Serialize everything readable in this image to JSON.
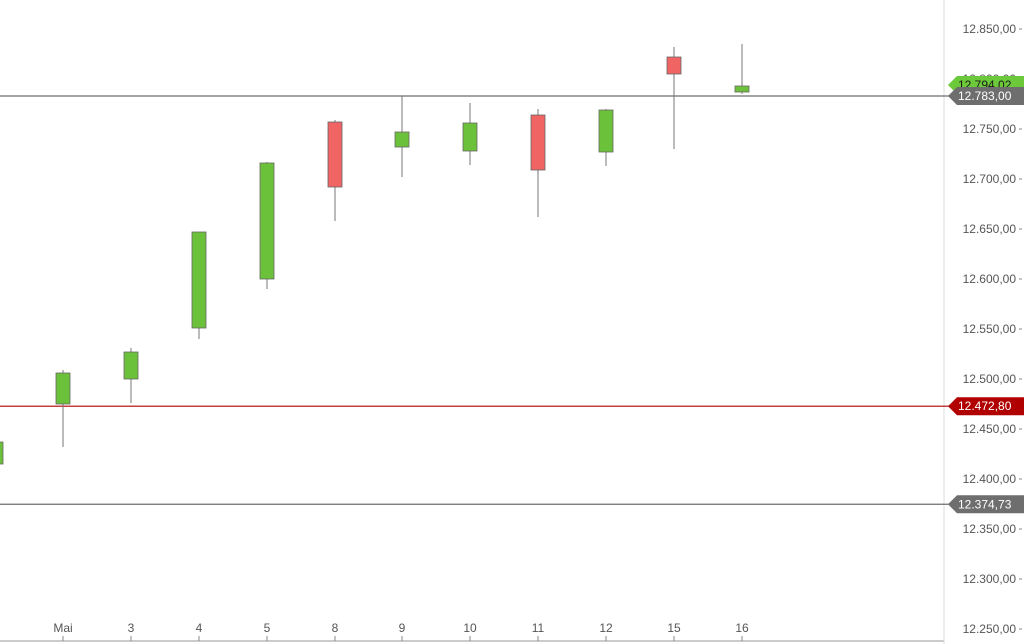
{
  "chart_data": {
    "type": "candlestick",
    "y_axis": {
      "ticks": [
        12250,
        12300,
        12350,
        12400,
        12450,
        12500,
        12550,
        12600,
        12650,
        12700,
        12750,
        12800,
        12850
      ],
      "tick_labels": [
        "12.250,00",
        "12.300,00",
        "12.350,00",
        "12.400,00",
        "12.450,00",
        "12.500,00",
        "12.550,00",
        "12.600,00",
        "12.650,00",
        "12.700,00",
        "12.750,00",
        "12.800,00",
        "12.850,00"
      ],
      "ylim": [
        12250,
        12875
      ],
      "position": "right"
    },
    "x_labels": [
      "3",
      "Mai",
      "3",
      "4",
      "5",
      "8",
      "9",
      "10",
      "11",
      "12",
      "15",
      "16"
    ],
    "candles": [
      {
        "x": "3",
        "open": 12415,
        "close": 12437,
        "high": 12437,
        "low": 12413,
        "dir": "up"
      },
      {
        "x": "Mai",
        "open": 12475,
        "close": 12506,
        "high": 12509,
        "low": 12432,
        "dir": "up"
      },
      {
        "x": "3",
        "open": 12500,
        "close": 12527,
        "high": 12531,
        "low": 12476,
        "dir": "up"
      },
      {
        "x": "4",
        "open": 12551,
        "close": 12647,
        "high": 12647,
        "low": 12540,
        "dir": "up"
      },
      {
        "x": "5",
        "open": 12600,
        "close": 12716,
        "high": 12717,
        "low": 12590,
        "dir": "up"
      },
      {
        "x": "8",
        "open": 12757,
        "close": 12692,
        "high": 12759,
        "low": 12658,
        "dir": "down"
      },
      {
        "x": "9",
        "open": 12732,
        "close": 12747,
        "high": 12783,
        "low": 12702,
        "dir": "up"
      },
      {
        "x": "10",
        "open": 12728,
        "close": 12756,
        "high": 12776,
        "low": 12714,
        "dir": "up"
      },
      {
        "x": "11",
        "open": 12764,
        "close": 12709,
        "high": 12770,
        "low": 12662,
        "dir": "down"
      },
      {
        "x": "12",
        "open": 12727,
        "close": 12769,
        "high": 12770,
        "low": 12713,
        "dir": "up"
      },
      {
        "x": "15",
        "open": 12822,
        "close": 12805,
        "high": 12832,
        "low": 12730,
        "dir": "down"
      },
      {
        "x": "16",
        "open": 12787,
        "close": 12793,
        "high": 12835,
        "low": 12785,
        "dir": "up"
      }
    ],
    "horizontal_lines": [
      {
        "value": 12783,
        "label": "12.783,00",
        "color": "#6e6e6e"
      },
      {
        "value": 12472.8,
        "label": "12.472,80",
        "color": "#b00000"
      },
      {
        "value": 12374.73,
        "label": "12.374,73",
        "color": "#6e6e6e"
      }
    ],
    "last_price": {
      "value": 12794.02,
      "label": "12.794,02",
      "color": "#6cc93a"
    },
    "colors": {
      "up": "#6cc13a",
      "down": "#f06464",
      "wick": "#777777",
      "axis": "#999999"
    }
  }
}
